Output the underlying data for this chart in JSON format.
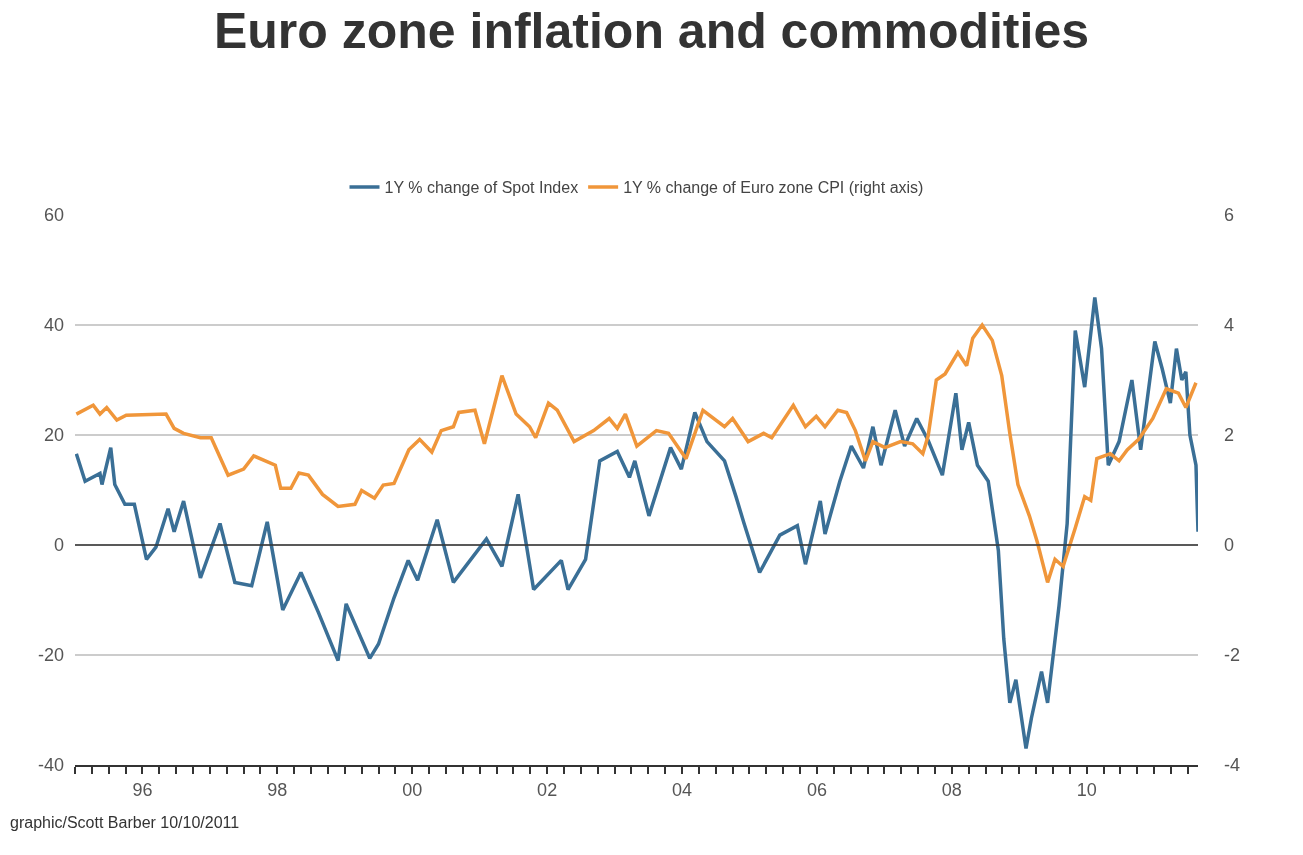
{
  "chart_data": {
    "type": "line",
    "title": "Euro zone inflation and commodities",
    "xlim": [
      1995.0,
      2011.65
    ],
    "xticks": [
      {
        "value": 1995,
        "label": null
      },
      {
        "value": 1995.25,
        "label": null
      },
      {
        "value": 1995.5,
        "label": null
      },
      {
        "value": 1995.75,
        "label": null
      },
      {
        "value": 1996,
        "label": "96"
      },
      {
        "value": 1996.25,
        "label": null
      },
      {
        "value": 1996.5,
        "label": null
      },
      {
        "value": 1996.75,
        "label": null
      },
      {
        "value": 1997,
        "label": null
      },
      {
        "value": 1997.25,
        "label": null
      },
      {
        "value": 1997.5,
        "label": null
      },
      {
        "value": 1997.75,
        "label": null
      },
      {
        "value": 1998,
        "label": "98"
      },
      {
        "value": 1998.25,
        "label": null
      },
      {
        "value": 1998.5,
        "label": null
      },
      {
        "value": 1998.75,
        "label": null
      },
      {
        "value": 1999,
        "label": null
      },
      {
        "value": 1999.25,
        "label": null
      },
      {
        "value": 1999.5,
        "label": null
      },
      {
        "value": 1999.75,
        "label": null
      },
      {
        "value": 2000,
        "label": "00"
      },
      {
        "value": 2000.25,
        "label": null
      },
      {
        "value": 2000.5,
        "label": null
      },
      {
        "value": 2000.75,
        "label": null
      },
      {
        "value": 2001,
        "label": null
      },
      {
        "value": 2001.25,
        "label": null
      },
      {
        "value": 2001.5,
        "label": null
      },
      {
        "value": 2001.75,
        "label": null
      },
      {
        "value": 2002,
        "label": "02"
      },
      {
        "value": 2002.25,
        "label": null
      },
      {
        "value": 2002.5,
        "label": null
      },
      {
        "value": 2002.75,
        "label": null
      },
      {
        "value": 2003,
        "label": null
      },
      {
        "value": 2003.25,
        "label": null
      },
      {
        "value": 2003.5,
        "label": null
      },
      {
        "value": 2003.75,
        "label": null
      },
      {
        "value": 2004,
        "label": "04"
      },
      {
        "value": 2004.25,
        "label": null
      },
      {
        "value": 2004.5,
        "label": null
      },
      {
        "value": 2004.75,
        "label": null
      },
      {
        "value": 2005,
        "label": null
      },
      {
        "value": 2005.25,
        "label": null
      },
      {
        "value": 2005.5,
        "label": null
      },
      {
        "value": 2005.75,
        "label": null
      },
      {
        "value": 2006,
        "label": "06"
      },
      {
        "value": 2006.25,
        "label": null
      },
      {
        "value": 2006.5,
        "label": null
      },
      {
        "value": 2006.75,
        "label": null
      },
      {
        "value": 2007,
        "label": null
      },
      {
        "value": 2007.25,
        "label": null
      },
      {
        "value": 2007.5,
        "label": null
      },
      {
        "value": 2007.75,
        "label": null
      },
      {
        "value": 2008,
        "label": "08"
      },
      {
        "value": 2008.25,
        "label": null
      },
      {
        "value": 2008.5,
        "label": null
      },
      {
        "value": 2008.75,
        "label": null
      },
      {
        "value": 2009,
        "label": null
      },
      {
        "value": 2009.25,
        "label": null
      },
      {
        "value": 2009.5,
        "label": null
      },
      {
        "value": 2009.75,
        "label": null
      },
      {
        "value": 2010,
        "label": "10"
      },
      {
        "value": 2010.25,
        "label": null
      },
      {
        "value": 2010.5,
        "label": null
      },
      {
        "value": 2010.75,
        "label": null
      },
      {
        "value": 2011,
        "label": null
      },
      {
        "value": 2011.25,
        "label": null
      },
      {
        "value": 2011.5,
        "label": null
      }
    ],
    "ylim": [
      -40,
      60
    ],
    "yticks": [
      -40,
      -20,
      0,
      20,
      40,
      60
    ],
    "y2lim": [
      -4,
      6
    ],
    "y2ticks": [
      -4,
      -2,
      0,
      2,
      4,
      6
    ],
    "grid": "y",
    "legend": "top",
    "line_style": "solid",
    "marker": "none",
    "ref_lines": [
      {
        "axis": "y",
        "value": 0,
        "color": "#333333"
      }
    ],
    "annotations": [
      "graphic/Scott Barber 10/10/2011"
    ],
    "series": [
      {
        "name": "1Y % change of Spot Index",
        "color": "#3a6f96",
        "x": [
          1995.02,
          1995.15,
          1995.37,
          1995.4,
          1995.53,
          1995.59,
          1995.74,
          1995.88,
          1996.06,
          1996.2,
          1996.38,
          1996.47,
          1996.61,
          1996.86,
          1997.15,
          1997.37,
          1997.62,
          1997.85,
          1998.08,
          1998.35,
          1998.61,
          1998.9,
          1999.02,
          1999.37,
          1999.5,
          1999.73,
          1999.94,
          2000.08,
          2000.37,
          2000.61,
          2001.1,
          2001.33,
          2001.57,
          2001.8,
          2002.21,
          2002.31,
          2002.57,
          2002.78,
          2003.04,
          2003.22,
          2003.3,
          2003.51,
          2003.83,
          2003.99,
          2004.19,
          2004.37,
          2004.63,
          2004.8,
          2004.92,
          2005.15,
          2005.45,
          2005.71,
          2005.83,
          2006.05,
          2006.12,
          2006.34,
          2006.51,
          2006.69,
          2006.83,
          2006.95,
          2007.16,
          2007.3,
          2007.48,
          2007.65,
          2007.86,
          2008.06,
          2008.15,
          2008.25,
          2008.38,
          2008.54,
          2008.69,
          2008.77,
          2008.86,
          2008.95,
          2009.1,
          2009.18,
          2009.33,
          2009.42,
          2009.59,
          2009.71,
          2009.83,
          2009.97,
          2010.12,
          2010.22,
          2010.32,
          2010.48,
          2010.67,
          2010.8,
          2011.01,
          2011.12,
          2011.24,
          2011.33,
          2011.41,
          2011.47,
          2011.53,
          2011.62,
          2011.65
        ],
        "values": [
          16.6,
          11.6,
          13,
          11,
          17.7,
          11,
          7.4,
          7.4,
          -2.6,
          -0.4,
          6.6,
          2.4,
          8,
          -6,
          3.9,
          -6.8,
          -7.4,
          4.2,
          -11.8,
          -5,
          -12.3,
          -21,
          -10.7,
          -20.6,
          -18,
          -9.6,
          -2.8,
          -6.4,
          4.6,
          -6.8,
          1.1,
          -3.9,
          9.2,
          -8.1,
          -2.8,
          -8.1,
          -2.6,
          15.3,
          17,
          12.3,
          15.3,
          5.3,
          17.7,
          13.8,
          24.1,
          18.8,
          15.3,
          8.8,
          3.9,
          -5,
          1.8,
          3.5,
          -3.5,
          8,
          2,
          11.6,
          18,
          14,
          21.5,
          14.5,
          24.5,
          18,
          23,
          19,
          12.7,
          27.6,
          17.3,
          22.3,
          14.5,
          11.6,
          -1,
          -17,
          -28.7,
          -24.5,
          -37,
          -31.5,
          -23,
          -28.7,
          -11,
          3.9,
          39,
          28.7,
          45,
          35.7,
          14.5,
          18.8,
          30,
          17.3,
          37,
          32,
          25.8,
          35.7,
          30,
          31.5,
          20,
          14.5,
          2.4
        ]
      },
      {
        "name": "1Y % change of Euro zone CPI (right axis)",
        "color": "#f0963a",
        "axis": "y2",
        "x": [
          1995.02,
          1995.27,
          1995.37,
          1995.47,
          1995.62,
          1995.76,
          1996.35,
          1996.47,
          1996.61,
          1996.86,
          1997.02,
          1997.27,
          1997.5,
          1997.65,
          1997.97,
          1998.05,
          1998.2,
          1998.32,
          1998.46,
          1998.67,
          1998.9,
          1999.15,
          1999.25,
          1999.44,
          1999.57,
          1999.73,
          1999.95,
          2000.11,
          2000.29,
          2000.43,
          2000.61,
          2000.69,
          2000.93,
          2001.07,
          2001.33,
          2001.54,
          2001.74,
          2001.83,
          2002.02,
          2002.15,
          2002.4,
          2002.69,
          2002.92,
          2003.04,
          2003.16,
          2003.33,
          2003.62,
          2003.8,
          2004.06,
          2004.31,
          2004.63,
          2004.75,
          2004.98,
          2005.21,
          2005.33,
          2005.65,
          2005.83,
          2005.99,
          2006.12,
          2006.31,
          2006.44,
          2006.57,
          2006.72,
          2006.83,
          2007.01,
          2007.24,
          2007.42,
          2007.57,
          2007.65,
          2007.77,
          2007.9,
          2008.09,
          2008.22,
          2008.31,
          2008.45,
          2008.6,
          2008.74,
          2008.86,
          2008.98,
          2009.15,
          2009.27,
          2009.42,
          2009.53,
          2009.65,
          2009.83,
          2009.97,
          2010.06,
          2010.15,
          2010.35,
          2010.48,
          2010.6,
          2010.77,
          2010.98,
          2011.18,
          2011.36,
          2011.47,
          2011.62
        ],
        "values": [
          2.38,
          2.54,
          2.38,
          2.5,
          2.27,
          2.36,
          2.38,
          2.12,
          2.03,
          1.95,
          1.95,
          1.27,
          1.38,
          1.62,
          1.45,
          1.03,
          1.03,
          1.31,
          1.27,
          0.92,
          0.7,
          0.74,
          0.99,
          0.85,
          1.09,
          1.12,
          1.73,
          1.92,
          1.69,
          2.08,
          2.15,
          2.41,
          2.45,
          1.84,
          3.08,
          2.38,
          2.15,
          1.95,
          2.58,
          2.45,
          1.88,
          2.08,
          2.3,
          2.12,
          2.38,
          1.8,
          2.08,
          2.03,
          1.57,
          2.45,
          2.15,
          2.3,
          1.88,
          2.03,
          1.95,
          2.54,
          2.15,
          2.34,
          2.15,
          2.45,
          2.41,
          2.08,
          1.53,
          1.88,
          1.77,
          1.88,
          1.84,
          1.66,
          1.99,
          3.0,
          3.11,
          3.5,
          3.26,
          3.76,
          4.0,
          3.72,
          3.08,
          2.03,
          1.1,
          0.53,
          0.04,
          -0.68,
          -0.26,
          -0.39,
          0.31,
          0.88,
          0.81,
          1.57,
          1.66,
          1.53,
          1.73,
          1.92,
          2.3,
          2.84,
          2.76,
          2.5,
          2.95
        ]
      }
    ]
  }
}
